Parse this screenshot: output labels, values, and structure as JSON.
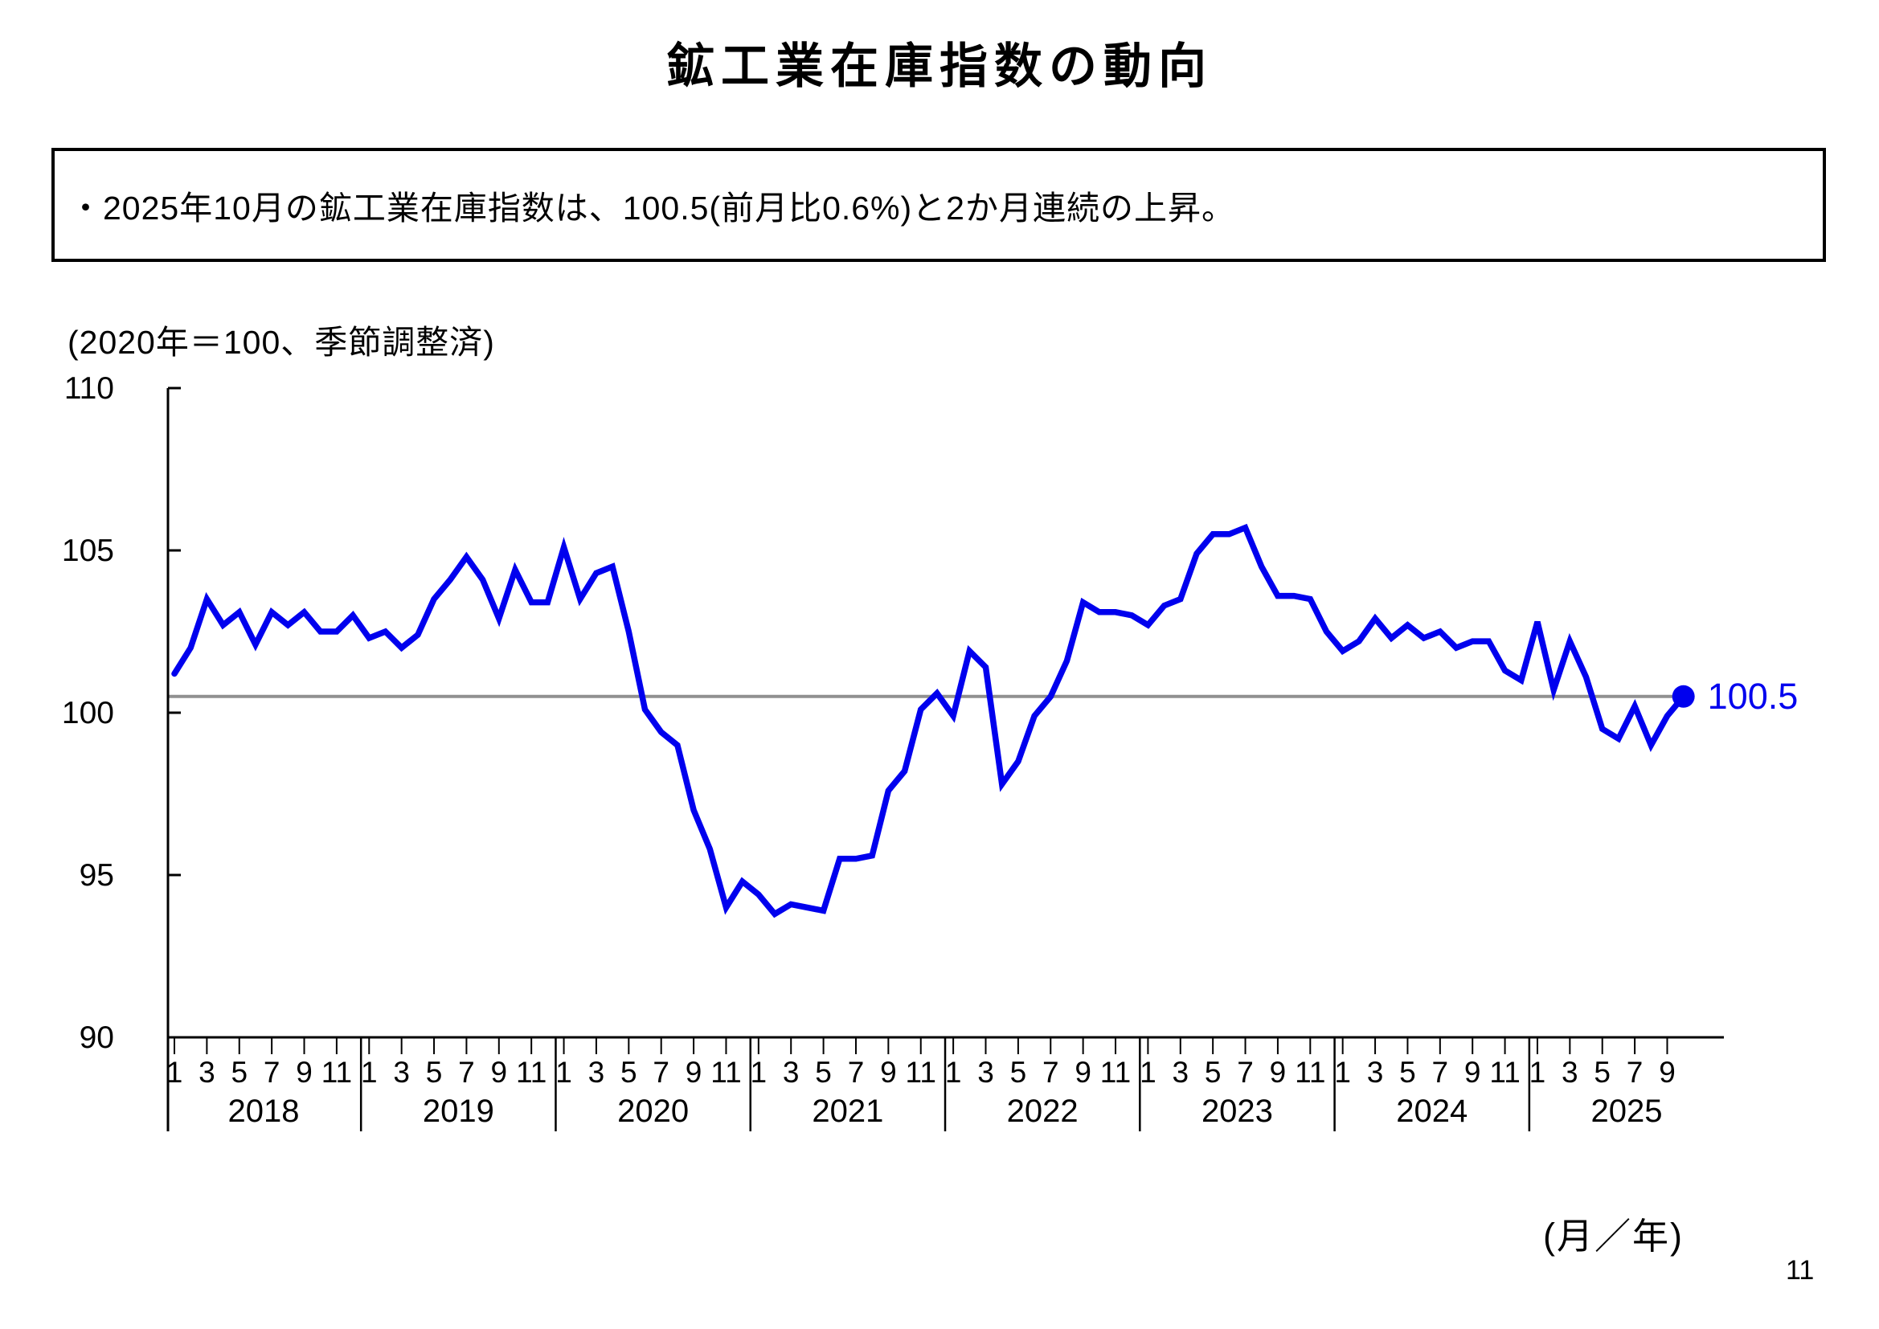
{
  "page": {
    "title": "鉱工業在庫指数の動向",
    "page_number": "11"
  },
  "summary_box": {
    "text": "・2025年10月の鉱工業在庫指数は、100.5(前月比0.6%)と2か月連続の上昇。"
  },
  "chart": {
    "unit_note": "(2020年＝100、季節調整済)",
    "x_axis_note": "(月／年)",
    "latest_label": "100.5",
    "line_color": "#0000ee",
    "point_color": "#0000ee",
    "reference_line_color": "#909090",
    "axis_color": "#000000"
  },
  "chart_data": {
    "type": "line",
    "title": "鉱工業在庫指数の動向",
    "ylabel": "(2020年＝100、季節調整済)",
    "xlabel": "(月／年)",
    "ylim": [
      90,
      110
    ],
    "yticks": [
      90,
      95,
      100,
      105,
      110
    ],
    "grid": false,
    "legend_position": "none",
    "month_tick_labels": [
      "1",
      "3",
      "5",
      "7",
      "9",
      "11"
    ],
    "reference_line": 100.5,
    "latest": {
      "period": "2025年10月",
      "value": 100.5,
      "label": "100.5"
    },
    "series": [
      {
        "name": "鉱工業在庫指数(季節調整済)",
        "start_year": 2018,
        "start_month": 1,
        "years": [
          {
            "year": "2018",
            "values": [
              101.2,
              102.0,
              103.5,
              102.7,
              103.1,
              102.1,
              103.1,
              102.7,
              103.1,
              102.5,
              102.5,
              103.0
            ]
          },
          {
            "year": "2019",
            "values": [
              102.3,
              102.5,
              102.0,
              102.4,
              103.5,
              104.1,
              104.8,
              104.1,
              102.9,
              104.4,
              103.4,
              103.4
            ]
          },
          {
            "year": "2020",
            "values": [
              105.1,
              103.5,
              104.3,
              104.5,
              102.5,
              100.1,
              99.4,
              99.0,
              97.0,
              95.8,
              94.0,
              94.8
            ]
          },
          {
            "year": "2021",
            "values": [
              94.4,
              93.8,
              94.1,
              94.0,
              93.9,
              95.5,
              95.5,
              95.6,
              97.6,
              98.2,
              100.1,
              100.6
            ]
          },
          {
            "year": "2022",
            "values": [
              99.9,
              101.9,
              101.4,
              97.8,
              98.5,
              99.9,
              100.5,
              101.6,
              103.4,
              103.1,
              103.1,
              103.0
            ]
          },
          {
            "year": "2023",
            "values": [
              102.7,
              103.3,
              103.5,
              104.9,
              105.5,
              105.5,
              105.7,
              104.5,
              103.6,
              103.6,
              103.5,
              102.5
            ]
          },
          {
            "year": "2024",
            "values": [
              101.9,
              102.2,
              102.9,
              102.3,
              102.7,
              102.3,
              102.5,
              102.0,
              102.2,
              102.2,
              101.3,
              101.0
            ]
          },
          {
            "year": "2025",
            "values": [
              102.8,
              100.7,
              102.2,
              101.1,
              99.5,
              99.2,
              100.2,
              99.0,
              99.9,
              100.5
            ]
          }
        ]
      }
    ]
  }
}
